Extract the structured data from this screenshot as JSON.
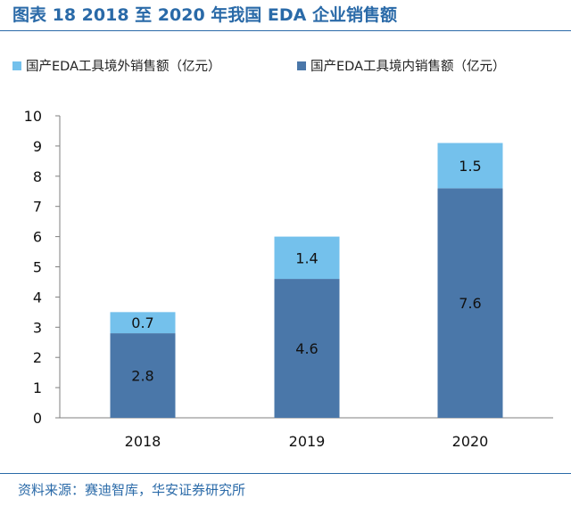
{
  "figure": {
    "title": "图表 18 2018 至 2020 年我国 EDA 企业销售额",
    "source": "资料来源：赛迪智库，华安证券研究所"
  },
  "colors": {
    "accent": "#2a6aa8",
    "domestic": "#4a77a9",
    "overseas": "#74c1ec",
    "axis": "#7f7f7f"
  },
  "chart_data": {
    "type": "bar",
    "stacked": true,
    "categories": [
      "2018",
      "2019",
      "2020"
    ],
    "series": [
      {
        "name": "国产EDA工具境内销售额（亿元）",
        "values": [
          2.8,
          4.6,
          7.6
        ],
        "color": "#4a77a9"
      },
      {
        "name": "国产EDA工具境外销售额（亿元）",
        "values": [
          0.7,
          1.4,
          1.5
        ],
        "color": "#74c1ec"
      }
    ],
    "legend_order": [
      1,
      0
    ],
    "legend_position": "top",
    "ylim": [
      0,
      10
    ],
    "yticks": [
      "0",
      "1",
      "2",
      "3",
      "4",
      "5",
      "6",
      "7",
      "8",
      "9",
      "10"
    ],
    "data_labels": [
      [
        "2.8",
        "4.6",
        "7.6"
      ],
      [
        "0.7",
        "1.4",
        "1.5"
      ]
    ],
    "title": "",
    "xlabel": "",
    "ylabel": "",
    "grid": false
  }
}
